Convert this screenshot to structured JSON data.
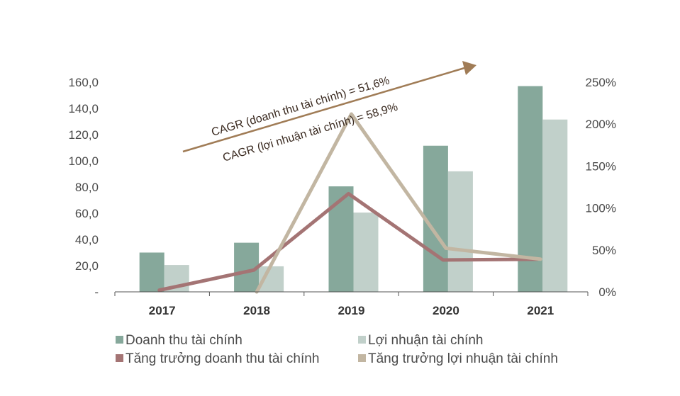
{
  "colors": {
    "bar1": "#86a89b",
    "bar2": "#c1d0ca",
    "line1": "#a47474",
    "line2": "#c2b6a2",
    "arrow": "#a07c56",
    "axis": "#555555"
  },
  "chart_data": {
    "type": "bar",
    "categories": [
      "2017",
      "2018",
      "2019",
      "2020",
      "2021"
    ],
    "series": [
      {
        "name": "Doanh thu tài chính",
        "type": "bar",
        "axis": "left",
        "values": [
          30.0,
          37.5,
          80.5,
          111.5,
          157.0
        ]
      },
      {
        "name": "Lợi nhuận tài chính",
        "type": "bar",
        "axis": "left",
        "values": [
          20.5,
          19.5,
          60.5,
          92.0,
          131.5
        ]
      },
      {
        "name": "Tăng trưởng doanh thu tài chính",
        "type": "line",
        "axis": "right",
        "values": [
          2,
          26,
          117,
          38,
          39
        ]
      },
      {
        "name": "Tăng trưởng lợi nhuận tài chính",
        "type": "line",
        "axis": "right",
        "values": [
          null,
          0,
          212,
          52,
          39
        ]
      }
    ],
    "left_axis": {
      "ylim": [
        0,
        160
      ],
      "ticks": [
        0,
        20,
        40,
        60,
        80,
        100,
        120,
        140,
        160
      ],
      "tick_labels": [
        "-",
        "20,0",
        "40,0",
        "60,0",
        "80,0",
        "100,0",
        "120,0",
        "140,0",
        "160,0"
      ]
    },
    "right_axis": {
      "ylim": [
        0,
        250
      ],
      "ticks": [
        0,
        50,
        100,
        150,
        200,
        250
      ],
      "tick_labels": [
        "0%",
        "50%",
        "100%",
        "150%",
        "200%",
        "250%"
      ]
    },
    "annotations": [
      "CAGR (doanh thu tài chính) = 51,6%",
      "CAGR (lợi nhuận tài chính) = 58,9%"
    ],
    "grid": false,
    "legend_position": "bottom"
  }
}
